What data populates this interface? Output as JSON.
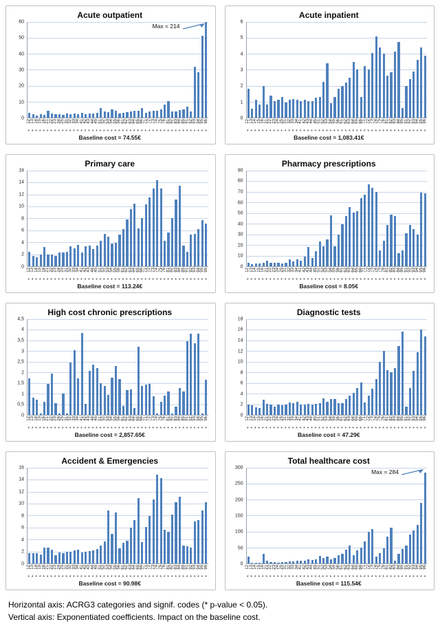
{
  "page": {
    "footer_line1": "Horizontal axis: ACRG3 categories and signif. codes (* p-value < 0.05).",
    "footer_line2": "Vertical axis: Exponentiated coefficients. Impact on the baseline cost."
  },
  "colors": {
    "bar": "#4f81bd",
    "gridline": "#c8d5e8",
    "axis": "#94a0ae",
    "panel_border": "#c0c0c0",
    "annotation_arrow": "#4f81bd"
  },
  "chart_data": {
    "type": "bar",
    "layout": "2x4 small multiples, horizontal gridlines on, no legend",
    "signif_marker": "*",
    "shared_categories": [
      "12",
      "13",
      "14",
      "15",
      "16",
      "21",
      "22",
      "23",
      "24",
      "25",
      "31",
      "32",
      "33",
      "34",
      "41",
      "42",
      "43",
      "44",
      "45",
      "51",
      "52",
      "53",
      "54",
      "55",
      "56",
      "61",
      "62",
      "63",
      "64",
      "65",
      "66",
      "71",
      "72",
      "73",
      "74",
      "75",
      "76",
      "81",
      "82",
      "83",
      "84",
      "85",
      "91",
      "92",
      "93",
      "94",
      "95",
      "96"
    ],
    "charts": [
      {
        "title": "Acute outpatient",
        "ymax": 60,
        "yticks": [
          "60",
          "50",
          "40",
          "30",
          "20",
          "10",
          "0"
        ],
        "values": [
          3,
          2,
          1.5,
          2,
          1.8,
          4.5,
          2.5,
          2.2,
          2,
          1.8,
          2.5,
          2.2,
          2.5,
          2.3,
          3,
          2,
          2.5,
          2.5,
          3,
          6,
          4,
          3.5,
          5.2,
          4.5,
          2.8,
          3,
          3.5,
          4,
          4.2,
          4.5,
          6.2,
          3,
          4,
          4.5,
          4.2,
          5,
          8.2,
          10.5,
          3.8,
          4,
          4.8,
          5.2,
          6.8,
          3.8,
          32,
          28.5,
          51.5,
          60
        ],
        "baseline": "Baseline cost = 74.55€",
        "annotation": "Max = 214"
      },
      {
        "title": "Acute inpatient",
        "ymax": 6,
        "yticks": [
          "6",
          "5",
          "4",
          "3",
          "2",
          "1",
          "0"
        ],
        "values": [
          1.8,
          0.55,
          1.1,
          0.8,
          2.0,
          0.8,
          1.4,
          1.05,
          1.1,
          1.3,
          0.95,
          1.1,
          1.15,
          1.1,
          1.05,
          1.1,
          1.05,
          1.05,
          1.25,
          1.3,
          2.25,
          3.4,
          0.9,
          1.3,
          1.8,
          2.0,
          2.2,
          2.5,
          3.5,
          3.0,
          1.3,
          3.25,
          3.0,
          4.05,
          5.1,
          4.4,
          4.0,
          2.65,
          2.85,
          4.15,
          4.75,
          0.6,
          2.0,
          2.4,
          2.9,
          3.6,
          4.4,
          3.9
        ],
        "baseline": "Baseline cost = 1,083.41€"
      },
      {
        "title": "Primary care",
        "ymax": 16,
        "yticks": [
          "16",
          "14",
          "12",
          "10",
          "8",
          "6",
          "4",
          "2",
          "0"
        ],
        "values": [
          2.4,
          1.7,
          1.5,
          1.9,
          3.2,
          2.0,
          2.0,
          1.7,
          2.3,
          2.3,
          2.4,
          3.3,
          3.0,
          3.6,
          2.3,
          3.3,
          3.5,
          2.9,
          3.4,
          4.2,
          5.4,
          4.9,
          3.8,
          3.9,
          5.3,
          6.2,
          7.8,
          9.5,
          10.5,
          6.3,
          8.0,
          10.3,
          11.5,
          13.0,
          14.4,
          13.0,
          4.3,
          5.6,
          8.0,
          11.2,
          13.4,
          3.4,
          2.4,
          5.3,
          5.4,
          6.2,
          7.7,
          7.1
        ],
        "baseline": "Baseline cost = 113.24€"
      },
      {
        "title": "Pharmacy prescriptions",
        "ymax": 90,
        "yticks": [
          "90",
          "80",
          "70",
          "60",
          "50",
          "40",
          "30",
          "20",
          "10",
          "0"
        ],
        "values": [
          3.5,
          2,
          2.5,
          2.5,
          3,
          5.5,
          3,
          3.5,
          3,
          2.5,
          3.2,
          6.5,
          4.5,
          6.5,
          5,
          9,
          18,
          7.5,
          14,
          23,
          18.5,
          25.5,
          48,
          19,
          30,
          39.5,
          47,
          55.5,
          50.5,
          52,
          64,
          67.5,
          77,
          74,
          70,
          15,
          24,
          39,
          48.5,
          47.5,
          12,
          15,
          31,
          39,
          35,
          30,
          69,
          68.5
        ],
        "baseline": "Baseline cost = 8.05€"
      },
      {
        "title": "High cost chronic prescriptions",
        "ymax": 4.5,
        "yticks": [
          "4,5",
          "4",
          "3,5",
          "3",
          "2,5",
          "2",
          "1,5",
          "1",
          "0,5",
          "0"
        ],
        "values": [
          1.72,
          0.82,
          0.72,
          0.05,
          0.62,
          1.47,
          1.95,
          0.55,
          0.05,
          1.0,
          0.07,
          2.45,
          3.05,
          1.7,
          3.85,
          0.52,
          2.08,
          2.36,
          2.2,
          1.5,
          1.35,
          0.95,
          1.75,
          2.3,
          1.67,
          0.43,
          1.15,
          1.2,
          0.32,
          3.2,
          1.37,
          1.43,
          1.45,
          0.87,
          0.05,
          0.6,
          0.9,
          1.1,
          0.05,
          0.4,
          1.25,
          1.1,
          3.47,
          3.82,
          3.35,
          3.8,
          0.05,
          1.65
        ],
        "baseline": "Baseline cost = 2,857.65€"
      },
      {
        "title": "Diagnostic tests",
        "ymax": 18,
        "yticks": [
          "18",
          "16",
          "14",
          "12",
          "10",
          "8",
          "6",
          "4",
          "2",
          "0"
        ],
        "values": [
          1.9,
          1.8,
          1.4,
          1.3,
          2.9,
          2.1,
          2.0,
          1.6,
          2.0,
          1.8,
          1.9,
          2.3,
          2.2,
          2.4,
          1.9,
          2.0,
          2.1,
          2.0,
          2.1,
          2.2,
          3.1,
          2.5,
          3.0,
          3.0,
          2.2,
          2.2,
          3.0,
          3.6,
          4.2,
          5.0,
          6.1,
          2.3,
          3.6,
          4.9,
          6.7,
          9.9,
          12.0,
          8.4,
          8.0,
          8.8,
          12.9,
          15.7,
          1.5,
          5.1,
          8.3,
          11.8,
          16.0,
          14.8
        ],
        "baseline": "Baseline cost = 47.29€"
      },
      {
        "title": "Accident & Emergencies",
        "ymax": 16,
        "yticks": [
          "16",
          "14",
          "12",
          "10",
          "8",
          "6",
          "4",
          "2",
          "0"
        ],
        "values": [
          1.7,
          1.7,
          1.7,
          1.5,
          2.7,
          2.7,
          2.3,
          1.4,
          1.8,
          1.7,
          2.0,
          2.0,
          2.2,
          2.3,
          1.8,
          2.0,
          2.1,
          2.2,
          2.4,
          3.0,
          3.7,
          8.8,
          5.0,
          8.5,
          2.5,
          3.5,
          3.8,
          6.0,
          7.2,
          10.9,
          3.6,
          6.1,
          7.9,
          10.7,
          14.8,
          14.3,
          5.6,
          5.3,
          8.2,
          10.2,
          11.1,
          3.0,
          2.9,
          2.6,
          7.0,
          7.2,
          8.8,
          10.2
        ],
        "baseline": "Baseline cost = 90.98€"
      },
      {
        "title": "Total healthcare cost",
        "ymax": 300,
        "yticks": [
          "300",
          "250",
          "200",
          "150",
          "100",
          "50",
          "0"
        ],
        "values": [
          22,
          3,
          2,
          3,
          30,
          8,
          5,
          4,
          3,
          5,
          5,
          6,
          7,
          9,
          9,
          8,
          13,
          10,
          13,
          23,
          17,
          22,
          12,
          18,
          25,
          30,
          44,
          57,
          25,
          40,
          50,
          69,
          100,
          107,
          22,
          32,
          47,
          84,
          113,
          9,
          30,
          45,
          57,
          90,
          104,
          120,
          190,
          284
        ],
        "baseline": "Baseline cost = 115.54€",
        "annotation": "Max = 284"
      }
    ]
  }
}
